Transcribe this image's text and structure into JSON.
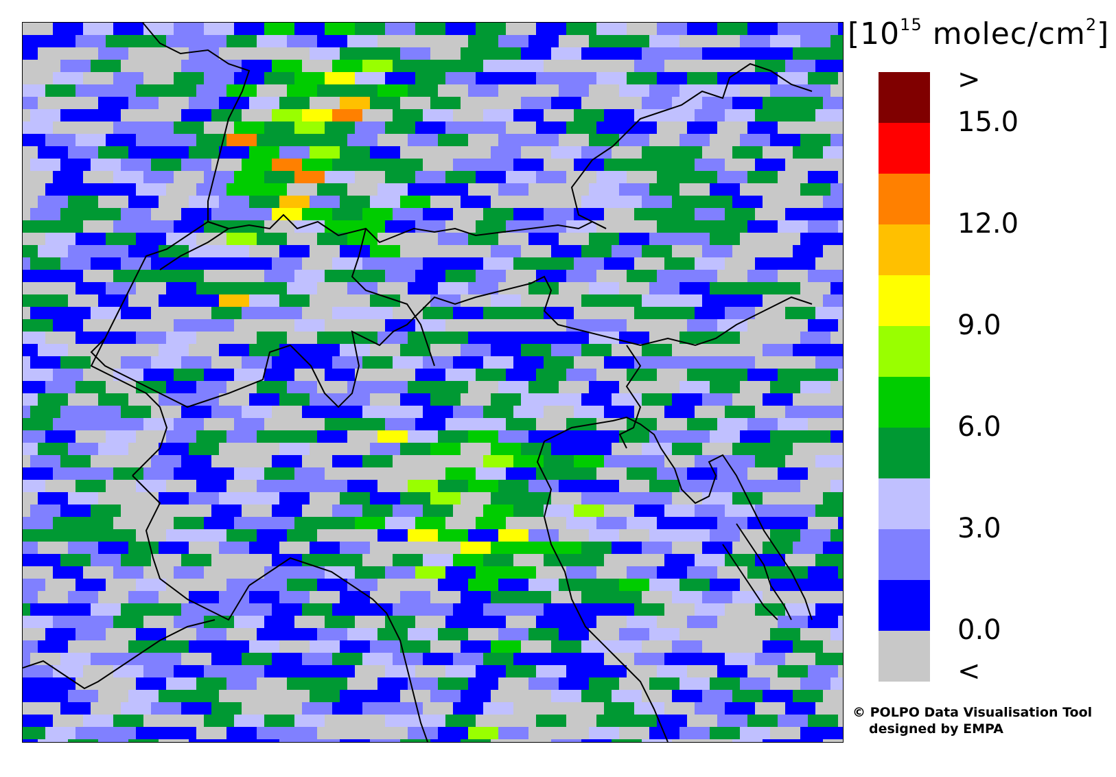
{
  "legend": {
    "unit_base": "10",
    "unit_exp": "15",
    "unit_rest": " molec/cm",
    "unit_sq": "2",
    "bins": [
      {
        "color": "#800000",
        "name": "above-15"
      },
      {
        "color": "#ff0000",
        "name": "13.5-15"
      },
      {
        "color": "#ff8000",
        "name": "12-13.5"
      },
      {
        "color": "#ffc000",
        "name": "10.5-12"
      },
      {
        "color": "#ffff00",
        "name": "9-10.5"
      },
      {
        "color": "#99ff00",
        "name": "7.5-9"
      },
      {
        "color": "#00cc00",
        "name": "6-7.5"
      },
      {
        "color": "#009933",
        "name": "4.5-6"
      },
      {
        "color": "#c0c0ff",
        "name": "3-4.5"
      },
      {
        "color": "#8080ff",
        "name": "1.5-3"
      },
      {
        "color": "#0000ff",
        "name": "0-1.5"
      },
      {
        "color": "#c8c8c8",
        "name": "below-0"
      }
    ],
    "ticks": [
      ">",
      "15.0",
      "12.0",
      "9.0",
      "6.0",
      "3.0",
      "0.0",
      "<"
    ]
  },
  "credit": {
    "line1": "© POLPO Data Visualisation Tool",
    "line2": "designed by EMPA"
  },
  "map": {
    "background_color": "#c8c8c8",
    "border_color": "#000000"
  }
}
